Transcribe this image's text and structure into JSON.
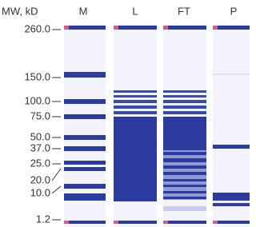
{
  "header": "MW, kD",
  "lanes": [
    "M",
    "L",
    "FT",
    "P"
  ],
  "markers": [
    "260.0",
    "150.0",
    "100.0",
    "75.0",
    "50.0",
    "37.0",
    "25.0",
    "20.0",
    "10.0",
    "1.2"
  ]
}
